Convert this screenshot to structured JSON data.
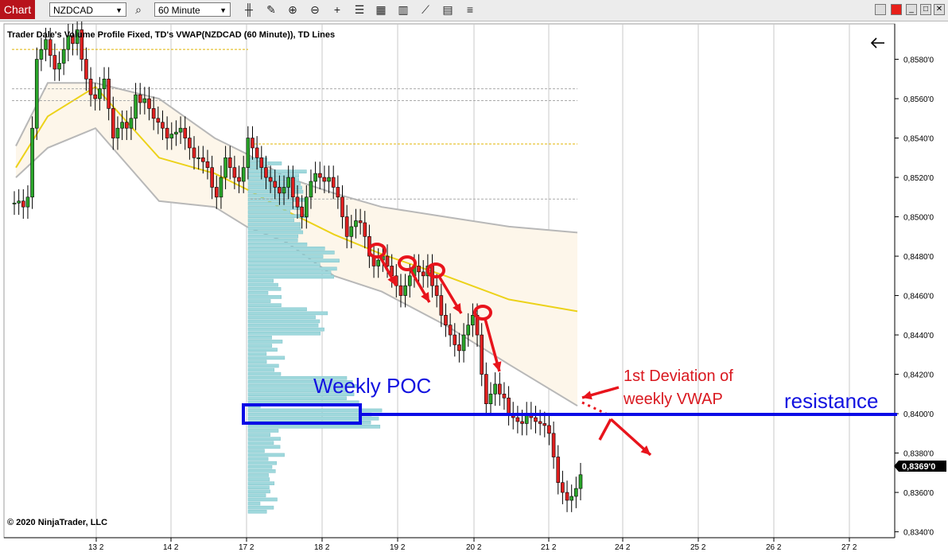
{
  "toolbar": {
    "tab_label": "Chart",
    "instrument": "NZDCAD",
    "interval": "60 Minute"
  },
  "chart_data": {
    "type": "candlestick",
    "title": "Trader Dale's Volume Profile Fixed, TD's VWAP(NZDCAD (60 Minute)), TD Lines",
    "copyright": "© 2020 NinjaTrader, LLC",
    "y_ticks": [
      "0,8580'0",
      "0,8560'0",
      "0,8540'0",
      "0,8520'0",
      "0,8500'0",
      "0,8480'0",
      "0,8460'0",
      "0,8440'0",
      "0,8420'0",
      "0,8400'0",
      "0,8380'0",
      "0,8360'0",
      "0,8340'0"
    ],
    "ylim": [
      0.8337,
      0.8598
    ],
    "x_ticks": [
      "13 2",
      "14 2",
      "17 2",
      "18 2",
      "19 2",
      "20 2",
      "21 2",
      "24 2",
      "25 2",
      "26 2",
      "27 2"
    ],
    "last_price_label": "0,8369'0",
    "annotations": {
      "weekly_poc": "Weekly POC",
      "resistance": "resistance",
      "deviation_line1": "1st  Deviation of",
      "deviation_line2": "weekly VWAP"
    },
    "candles_close": [
      0.8507,
      0.8508,
      0.8505,
      0.851,
      0.8545,
      0.858,
      0.8585,
      0.859,
      0.8582,
      0.8575,
      0.8578,
      0.8585,
      0.8592,
      0.8588,
      0.8595,
      0.858,
      0.857,
      0.8562,
      0.856,
      0.8565,
      0.857,
      0.8555,
      0.854,
      0.8545,
      0.8548,
      0.8545,
      0.855,
      0.8562,
      0.8558,
      0.856,
      0.8555,
      0.855,
      0.8548,
      0.8545,
      0.854,
      0.8542,
      0.8543,
      0.8545,
      0.854,
      0.8535,
      0.853,
      0.853,
      0.8528,
      0.8525,
      0.8515,
      0.851,
      0.852,
      0.853,
      0.8525,
      0.852,
      0.8518,
      0.8525,
      0.854,
      0.8535,
      0.853,
      0.8525,
      0.852,
      0.8518,
      0.8515,
      0.8512,
      0.8515,
      0.852,
      0.851,
      0.8505,
      0.85,
      0.851,
      0.8518,
      0.8522,
      0.852,
      0.8518,
      0.852,
      0.8515,
      0.851,
      0.85,
      0.849,
      0.8495,
      0.8498,
      0.8497,
      0.849,
      0.848,
      0.8475,
      0.8478,
      0.848,
      0.8475,
      0.847,
      0.8465,
      0.846,
      0.8465,
      0.847,
      0.8475,
      0.8472,
      0.847,
      0.8475,
      0.8465,
      0.846,
      0.845,
      0.8445,
      0.844,
      0.8435,
      0.8432,
      0.844,
      0.8445,
      0.845,
      0.844,
      0.842,
      0.8405,
      0.841,
      0.8415,
      0.841,
      0.8408,
      0.84,
      0.8398,
      0.8396,
      0.8395,
      0.84,
      0.8398,
      0.8396,
      0.8395,
      0.8394,
      0.839,
      0.8378,
      0.8365,
      0.836,
      0.8356,
      0.8358,
      0.8362,
      0.8369
    ],
    "vwap": [
      [
        0.8525,
        0.852,
        0.8536
      ],
      [
        0.8551,
        0.8535,
        0.8568
      ],
      [
        0.8566,
        0.8545,
        0.8568
      ],
      [
        0.853,
        0.8508,
        0.856
      ],
      [
        0.8522,
        0.8505,
        0.854
      ],
      [
        0.8514,
        0.8495,
        0.8532
      ],
      [
        0.8503,
        0.8487,
        0.852
      ],
      [
        0.8491,
        0.847,
        0.8512
      ],
      [
        0.8481,
        0.8462,
        0.8505
      ],
      [
        0.847,
        0.8445,
        0.85
      ],
      [
        0.8458,
        0.8425,
        0.8495
      ],
      [
        0.8452,
        0.8404,
        0.8492
      ]
    ]
  }
}
